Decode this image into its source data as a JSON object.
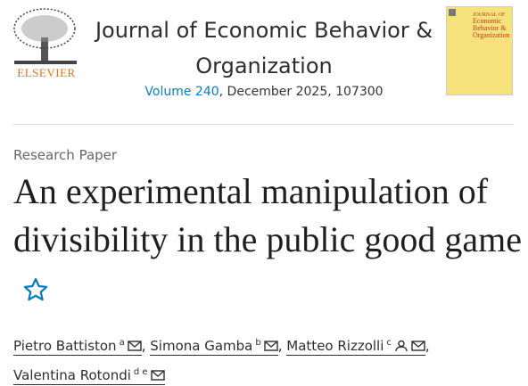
{
  "header": {
    "publisher": "ELSEVIER",
    "journal": "Journal of Economic Behavior & Organization",
    "volume": "Volume 240",
    "issue_info": ", December 2025, 107300",
    "cover": {
      "line1": "JOURNAL OF",
      "line2": "Economic",
      "line3": "Behavior &",
      "line4": "Organization"
    }
  },
  "article": {
    "type": "Research Paper",
    "title": "An experimental manipulation of divisibility in the public good game"
  },
  "authors": {
    "separator": ",",
    "list": [
      {
        "name": "Pietro Battiston",
        "affiliations": "a"
      },
      {
        "name": "Simona Gamba",
        "affiliations": "b"
      },
      {
        "name": "Matteo Rizzolli",
        "affiliations": "c"
      },
      {
        "name": "Valentina Rotondi",
        "affiliations": "d e"
      }
    ]
  }
}
